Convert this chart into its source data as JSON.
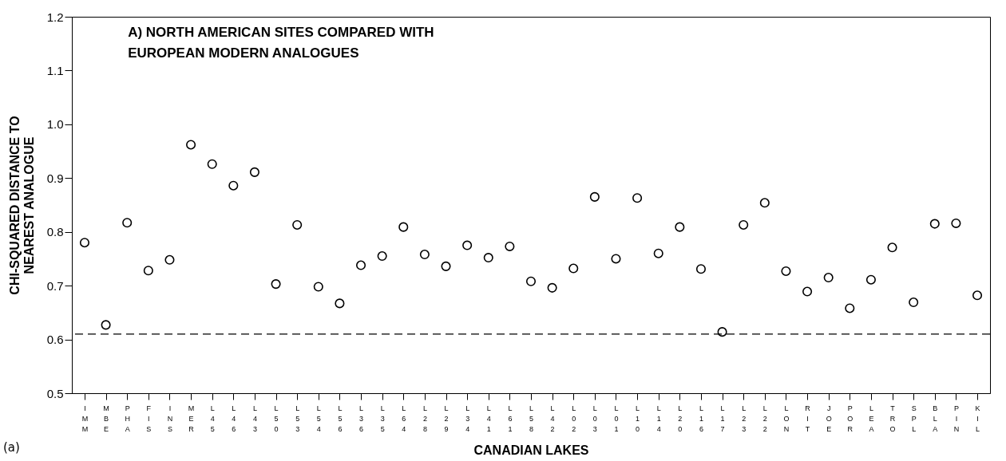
{
  "chart_data": {
    "type": "scatter",
    "title": "A) NORTH AMERICAN SITES COMPARED WITH\nEUROPEAN MODERN ANALOGUES",
    "xlabel": "CANADIAN LAKES",
    "ylabel": "CHI-SQUARED DISTANCE TO\nNEAREST ANALOGUE",
    "categories": [
      "IMM",
      "MBE",
      "PHA",
      "FIS",
      "INS",
      "MER",
      "L45",
      "L46",
      "L43",
      "L50",
      "L53",
      "L54",
      "L56",
      "L36",
      "L35",
      "L64",
      "L28",
      "L29",
      "L34",
      "L41",
      "L61",
      "L58",
      "L42",
      "L02",
      "L03",
      "L01",
      "L10",
      "L14",
      "L20",
      "L16",
      "L17",
      "L23",
      "L22",
      "LON",
      "RIT",
      "JOE",
      "POR",
      "LEA",
      "TRO",
      "SPL",
      "BLA",
      "PIN",
      "KIL"
    ],
    "series": [
      {
        "color": "#000000",
        "values": [
          0.78,
          0.627,
          0.817,
          0.728,
          0.748,
          0.962,
          0.926,
          0.886,
          0.911,
          0.703,
          0.813,
          0.698,
          0.667,
          0.738,
          0.755,
          0.809,
          0.758,
          0.736,
          0.775,
          0.752,
          0.773,
          0.708,
          0.696,
          0.732,
          0.865,
          0.75,
          0.863,
          0.76,
          0.809,
          0.731,
          0.614,
          0.813,
          0.854,
          0.727,
          0.689,
          0.715,
          0.658,
          0.711,
          0.771,
          0.669,
          0.815,
          0.816,
          0.682
        ]
      }
    ],
    "ylim": [
      0.5,
      1.2
    ],
    "yticks": [
      0.5,
      0.6,
      0.7,
      0.8,
      0.9,
      {
        "value": 1,
        "label": "1.0"
      },
      1.1,
      1.2
    ],
    "grid": false,
    "legend": false,
    "marker": "circle",
    "ref_lines": [
      {
        "axis": "y",
        "value": 0.61,
        "line_style": "dashed",
        "color": "#000000"
      }
    ],
    "annotations": [
      "(a)"
    ]
  }
}
